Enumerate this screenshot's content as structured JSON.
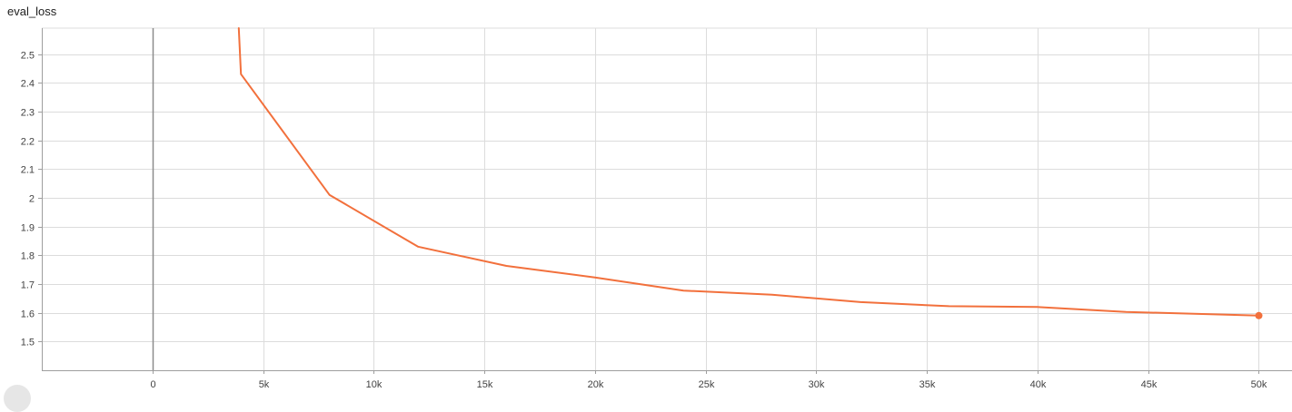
{
  "chart_data": {
    "type": "line",
    "title": "eval_loss",
    "xlabel": "",
    "ylabel": "",
    "xlim": [
      -5000,
      51500
    ],
    "ylim": [
      1.4,
      2.59
    ],
    "x_ticks": [
      0,
      5000,
      10000,
      15000,
      20000,
      25000,
      30000,
      35000,
      40000,
      45000,
      50000
    ],
    "x_tick_labels": [
      "0",
      "5k",
      "10k",
      "15k",
      "20k",
      "25k",
      "30k",
      "35k",
      "40k",
      "45k",
      "50k"
    ],
    "y_ticks": [
      1.5,
      1.6,
      1.7,
      1.8,
      1.9,
      2.0,
      2.1,
      2.2,
      2.3,
      2.4,
      2.5
    ],
    "y_tick_labels": [
      "1.5",
      "1.6",
      "1.7",
      "1.8",
      "1.9",
      "2",
      "2.1",
      "2.2",
      "2.3",
      "2.4",
      "2.5"
    ],
    "grid": true,
    "series": [
      {
        "color": "#f2703c",
        "x": [
          3900,
          4000,
          8000,
          12000,
          16000,
          20000,
          24000,
          28000,
          32000,
          36000,
          40000,
          44000,
          50000
        ],
        "y": [
          2.59,
          2.43,
          2.01,
          1.83,
          1.763,
          1.723,
          1.677,
          1.663,
          1.637,
          1.623,
          1.62,
          1.603,
          1.59
        ]
      }
    ]
  }
}
